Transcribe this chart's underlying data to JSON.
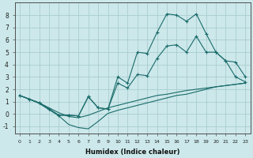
{
  "xlabel": "Humidex (Indice chaleur)",
  "bg_color": "#cce8ea",
  "grid_color": "#aacdd0",
  "line_color": "#1a6b6b",
  "xlim": [
    -0.5,
    23.5
  ],
  "ylim": [
    -1.6,
    9.0
  ],
  "xticks": [
    0,
    1,
    2,
    3,
    4,
    5,
    6,
    7,
    8,
    9,
    10,
    11,
    12,
    13,
    14,
    15,
    16,
    17,
    18,
    19,
    20,
    21,
    22,
    23
  ],
  "yticks": [
    -1,
    0,
    1,
    2,
    3,
    4,
    5,
    6,
    7,
    8
  ],
  "line1_x": [
    0,
    1,
    2,
    3,
    4,
    5,
    6,
    7,
    8,
    9,
    10,
    11,
    12,
    13,
    14,
    15,
    16,
    17,
    18,
    19,
    20,
    21,
    22,
    23
  ],
  "line1_y": [
    1.5,
    1.2,
    0.9,
    0.5,
    0.1,
    -0.2,
    -0.3,
    -0.1,
    0.2,
    0.5,
    0.7,
    0.9,
    1.1,
    1.3,
    1.5,
    1.6,
    1.75,
    1.9,
    2.0,
    2.1,
    2.2,
    2.3,
    2.4,
    2.5
  ],
  "line2_x": [
    0,
    1,
    2,
    3,
    4,
    5,
    6,
    7,
    8,
    9,
    10,
    11,
    12,
    13,
    14,
    15,
    16,
    17,
    18,
    19,
    20,
    21,
    22,
    23
  ],
  "line2_y": [
    1.5,
    1.2,
    0.85,
    0.35,
    -0.15,
    -0.85,
    -1.1,
    -1.2,
    -0.6,
    0.05,
    0.3,
    0.5,
    0.7,
    0.9,
    1.1,
    1.3,
    1.5,
    1.6,
    1.8,
    2.0,
    2.2,
    2.3,
    2.4,
    2.5
  ],
  "line3_x": [
    0,
    1,
    2,
    3,
    4,
    5,
    6,
    7,
    8,
    9,
    10,
    11,
    12,
    13,
    14,
    15,
    16,
    17,
    18,
    19,
    20,
    21,
    22,
    23
  ],
  "line3_y": [
    1.5,
    1.2,
    0.9,
    0.4,
    -0.1,
    -0.1,
    -0.15,
    1.4,
    0.5,
    0.4,
    3.0,
    2.5,
    5.0,
    4.9,
    6.6,
    8.1,
    8.0,
    7.5,
    8.1,
    6.5,
    5.0,
    4.3,
    3.0,
    2.6
  ],
  "line4_x": [
    0,
    1,
    2,
    3,
    4,
    5,
    6,
    7,
    8,
    9,
    10,
    11,
    12,
    13,
    14,
    15,
    16,
    17,
    18,
    19,
    20,
    21,
    22,
    23
  ],
  "line4_y": [
    1.5,
    1.2,
    0.9,
    0.4,
    -0.1,
    -0.1,
    -0.15,
    1.4,
    0.5,
    0.4,
    2.5,
    2.1,
    3.2,
    3.1,
    4.5,
    5.5,
    5.6,
    5.0,
    6.3,
    5.0,
    5.0,
    4.3,
    4.2,
    3.0
  ]
}
